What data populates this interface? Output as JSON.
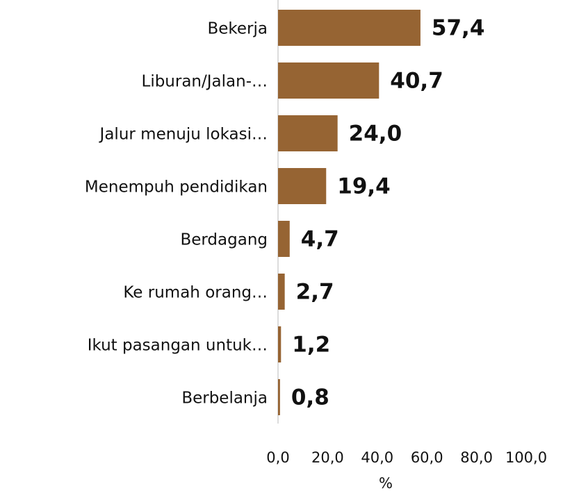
{
  "chart_data": {
    "type": "barh",
    "categories": [
      "Bekerja",
      "Liburan/Jalan-…",
      "Jalur menuju lokasi…",
      "Menempuh pendidikan",
      "Berdagang",
      "Ke rumah orang…",
      "Ikut pasangan untuk…",
      "Berbelanja"
    ],
    "values": [
      57.4,
      40.7,
      24.0,
      19.4,
      4.7,
      2.7,
      1.2,
      0.8
    ],
    "value_labels": [
      "57,4",
      "40,7",
      "24,0",
      "19,4",
      "4,7",
      "2,7",
      "1,2",
      "0,8"
    ],
    "color": "#966433",
    "xlabel": "%",
    "xlim": [
      0,
      100
    ],
    "xticks": [
      {
        "value": 0,
        "label": "0,0"
      },
      {
        "value": 20,
        "label": "20,0"
      },
      {
        "value": 40,
        "label": "40,0"
      },
      {
        "value": 60,
        "label": "60,0"
      },
      {
        "value": 80,
        "label": "80,0"
      },
      {
        "value": 100,
        "label": "100,0"
      }
    ]
  }
}
